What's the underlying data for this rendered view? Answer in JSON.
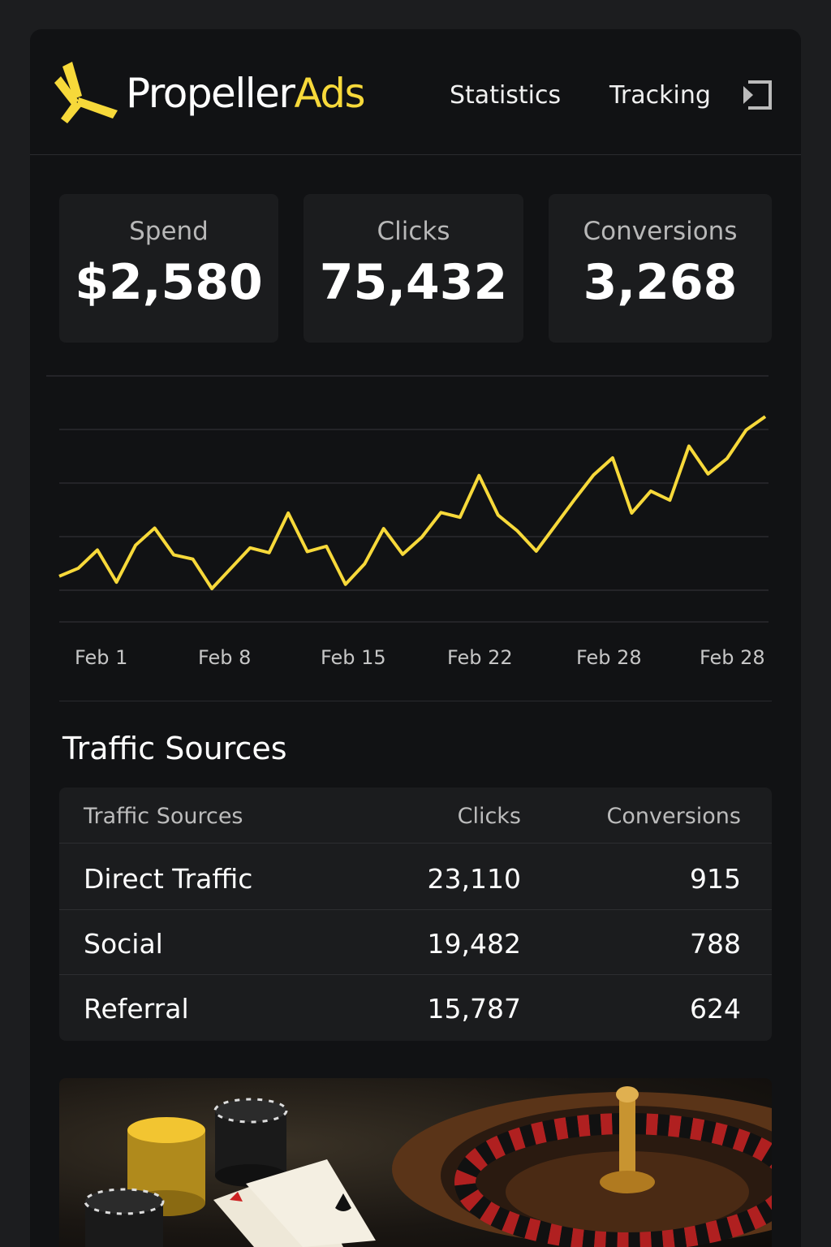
{
  "header": {
    "brand_main": "Propeller",
    "brand_accent": "Ads",
    "nav": [
      "Statistics",
      "Tracking"
    ],
    "logout_icon": "exit-icon"
  },
  "kpis": [
    {
      "label": "Spend",
      "value": "$2,580"
    },
    {
      "label": "Clicks",
      "value": "75,432"
    },
    {
      "label": "Conversions",
      "value": "3,268"
    }
  ],
  "colors": {
    "accent": "#f7d93a",
    "background": "#111214",
    "card": "#1b1c1e"
  },
  "chart_data": {
    "type": "line",
    "x_tick_labels": [
      "Feb 1",
      "Feb 8",
      "Feb 15",
      "Feb 22",
      "Feb 28",
      "Feb 28"
    ],
    "values": [
      2.6,
      4.1,
      7.5,
      1.5,
      8.4,
      11.6,
      6.6,
      5.8,
      0.3,
      4.1,
      7.9,
      7.0,
      14.4,
      7.2,
      8.2,
      1.1,
      4.9,
      11.5,
      6.7,
      9.9,
      14.5,
      13.6,
      21.4,
      14.0,
      11.1,
      7.3,
      12.1,
      16.9,
      21.5,
      24.7,
      14.4,
      18.5,
      16.8,
      26.9,
      21.7,
      24.6,
      29.9,
      32.4
    ],
    "ylim": [
      0,
      40
    ],
    "grid": true,
    "line_color": "#f7d93a"
  },
  "traffic": {
    "title": "Traffic Sources",
    "columns": [
      "Traffic Sources",
      "Clicks",
      "Conversions"
    ],
    "rows": [
      [
        "Direct Traffic",
        "23,110",
        "915"
      ],
      [
        "Social",
        "19,482",
        "788"
      ],
      [
        "Referral",
        "15,787",
        "624"
      ]
    ]
  }
}
